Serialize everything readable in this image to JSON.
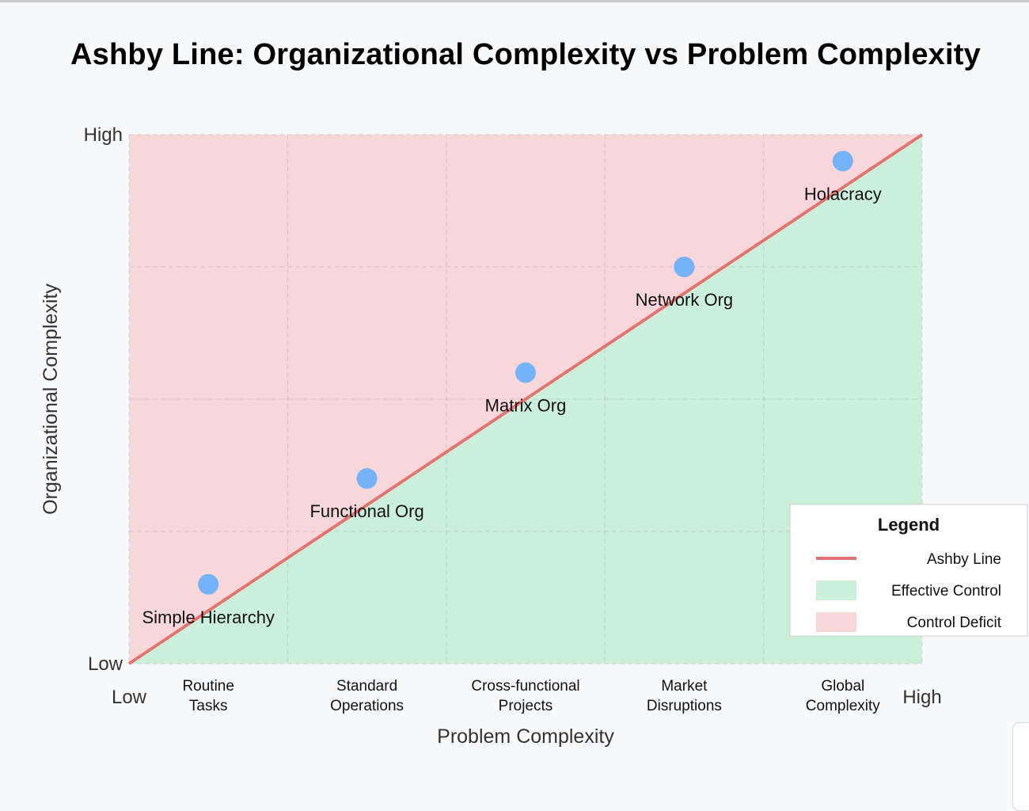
{
  "chart_data": {
    "type": "line",
    "title": "Ashby Line: Organizational Complexity vs Problem Complexity",
    "xlabel": "Problem Complexity",
    "ylabel": "Organizational Complexity",
    "xlim": [
      0,
      5
    ],
    "ylim": [
      0,
      4
    ],
    "grid": true,
    "x_end_labels": {
      "low": "Low",
      "high": "High"
    },
    "y_end_labels": {
      "low": "Low",
      "high": "High"
    },
    "categories": [
      [
        "Routine",
        "Tasks"
      ],
      [
        "Standard",
        "Operations"
      ],
      [
        "Cross-functional",
        "Projects"
      ],
      [
        "Market",
        "Disruptions"
      ],
      [
        "Global",
        "Complexity"
      ]
    ],
    "ashby_line": {
      "x": [
        0,
        5
      ],
      "y": [
        0,
        4
      ]
    },
    "regions": {
      "above": {
        "name": "Control Deficit",
        "color": "#f8d7da"
      },
      "below": {
        "name": "Effective Control",
        "color": "#caf0dc"
      }
    },
    "points": [
      {
        "label": "Simple Hierarchy",
        "x": 0.5,
        "y": 0.6
      },
      {
        "label": "Functional Org",
        "x": 1.5,
        "y": 1.4
      },
      {
        "label": "Matrix Org",
        "x": 2.5,
        "y": 2.2
      },
      {
        "label": "Network Org",
        "x": 3.5,
        "y": 3.0
      },
      {
        "label": "Holacracy",
        "x": 4.5,
        "y": 3.8
      }
    ],
    "colors": {
      "line": "#e57373",
      "point": "#74b3f7"
    },
    "legend": {
      "title": "Legend",
      "placement": "bottom-right",
      "items": [
        {
          "label": "Ashby Line",
          "kind": "line",
          "color": "#e57373"
        },
        {
          "label": "Effective Control",
          "kind": "area",
          "color": "#caf0dc"
        },
        {
          "label": "Control Deficit",
          "kind": "area",
          "color": "#f8d7da"
        }
      ]
    }
  }
}
